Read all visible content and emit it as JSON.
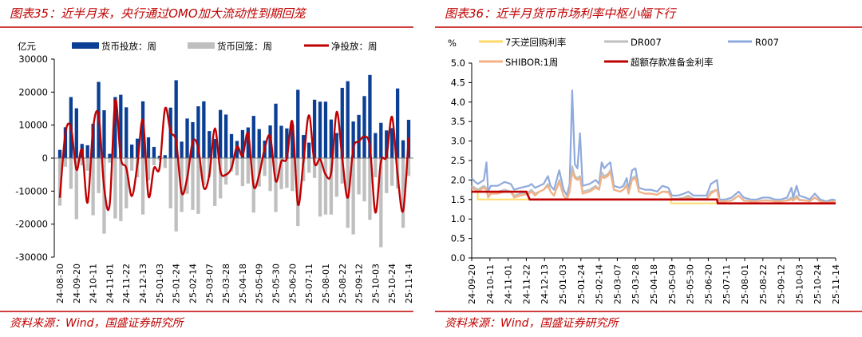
{
  "colors": {
    "accent": "#c00000",
    "injection": "#0b3f94",
    "withdrawal": "#bfbfbf",
    "net": "#c00000",
    "reverse_repo": "#ffd966",
    "dr007": "#bfbfbf",
    "r007": "#8faadc",
    "shibor": "#f4b183",
    "excess_reserve": "#c00000"
  },
  "chart_data": [
    {
      "type": "bar",
      "title": "图表35：近半月来，央行通过OMO加大流动性到期回笼",
      "source": "资料来源：Wind，国盛证券研究所",
      "ylabel": "亿元",
      "ylim": [
        -30000,
        30000
      ],
      "yticks": [
        "30000",
        "20000",
        "10000",
        "0",
        "-10000",
        "-20000",
        "-30000"
      ],
      "ytick_values": [
        30000,
        20000,
        10000,
        0,
        -10000,
        -20000,
        -30000
      ],
      "xtick_labels": [
        "24-08-30",
        "24-09-20",
        "24-10-11",
        "24-11-01",
        "24-11-22",
        "24-12-13",
        "25-01-03",
        "25-01-24",
        "25-02-14",
        "25-03-07",
        "25-03-28",
        "25-04-18",
        "25-05-09",
        "25-05-30",
        "25-06-20",
        "25-07-11",
        "25-08-01",
        "25-08-22",
        "25-09-12",
        "25-10-03",
        "25-10-24",
        "25-11-14"
      ],
      "grid": false,
      "legend_placement": "top",
      "series": [
        {
          "name": "货币投放：周",
          "kind": "bar",
          "values": [
            2500,
            9350,
            18500,
            15100,
            4300,
            3900,
            10400,
            23100,
            14500,
            1300,
            18500,
            19200,
            15400,
            4100,
            5900,
            17200,
            6300,
            3400,
            700,
            900,
            15300,
            23600,
            5000,
            12000,
            10900,
            15700,
            17200,
            8200,
            5800,
            14600,
            13200,
            7300,
            5200,
            8500,
            9300,
            12800,
            8800,
            5300,
            9900,
            16500,
            9800,
            9000,
            10100,
            20700,
            7000,
            4700,
            17700,
            17100,
            17100,
            11700,
            7600,
            21300,
            23300,
            11100,
            13100,
            18800,
            25200,
            7600,
            10700,
            8400,
            9100,
            21100,
            5400,
            11600
          ]
        },
        {
          "name": "货币回笼：周",
          "kind": "bar",
          "values": [
            -14400,
            -2600,
            -9300,
            -18500,
            -2200,
            -3800,
            -17300,
            -10600,
            -22900,
            -1400,
            -18300,
            -19100,
            -15200,
            -3800,
            -5800,
            -17100,
            -6700,
            -2200,
            -600,
            -3000,
            -15200,
            -22200,
            -16300,
            -10800,
            -15700,
            -16900,
            -8200,
            -5800,
            -14500,
            -12200,
            -8000,
            -4000,
            -5200,
            -8500,
            -7700,
            -16500,
            -8600,
            -5400,
            -10000,
            -16300,
            -9400,
            -9000,
            -10000,
            -20600,
            -7000,
            -4400,
            -6000,
            -17700,
            -17100,
            -17100,
            -11700,
            -7700,
            -21100,
            -23100,
            -11000,
            -13100,
            -18700,
            -5800,
            -27000,
            -10600,
            -8400,
            -9200,
            -21100,
            -5400
          ]
        },
        {
          "name": "净投放：周",
          "kind": "line",
          "values": [
            -12000,
            7500,
            9300,
            -3500,
            2500,
            -13500,
            9000,
            13000,
            -9000,
            -14000,
            17500,
            0,
            -3000,
            -11500,
            -2000,
            11500,
            -11500,
            -3000,
            -3000,
            15000,
            8000,
            5000,
            -10500,
            -6000,
            5000,
            3000,
            -9000,
            -5000,
            9000,
            -4000,
            -5000,
            -3000,
            3500,
            700,
            7500,
            -8500,
            -5000,
            3000,
            6500,
            -7000,
            -1000,
            0,
            11000,
            -14000,
            -1000,
            13000,
            -1500,
            -300,
            -5000,
            -4500,
            14000,
            0,
            -12000,
            3000,
            5000,
            6500,
            3500,
            -16500,
            -1000,
            500,
            12500,
            -5000,
            -16000,
            6200
          ]
        }
      ]
    },
    {
      "type": "line",
      "title": "图表36：近半月货币市场利率中枢小幅下行",
      "source": "资料来源：Wind，国盛证券研究所",
      "ylabel": "%",
      "ylim": [
        0,
        5
      ],
      "yticks": [
        "5.0",
        "4.5",
        "4.0",
        "3.5",
        "3.0",
        "2.5",
        "2.0",
        "1.5",
        "1.0",
        "0.5",
        "0.0"
      ],
      "ytick_values": [
        5,
        4.5,
        4,
        3.5,
        3,
        2.5,
        2,
        1.5,
        1,
        0.5,
        0
      ],
      "xlim": [
        "24-09-20",
        "25-11-14"
      ],
      "xtick_labels": [
        "24-09-20",
        "24-10-11",
        "24-11-01",
        "24-11-22",
        "24-12-13",
        "25-01-03",
        "25-01-24",
        "25-02-14",
        "25-03-07",
        "25-03-28",
        "25-04-18",
        "25-05-09",
        "25-05-30",
        "25-06-20",
        "25-07-11",
        "25-08-01",
        "25-08-22",
        "25-09-12",
        "25-10-03",
        "25-10-24",
        "25-11-14"
      ],
      "grid": false,
      "legend_placement": "top",
      "dates": [
        "24-09-20",
        "24-09-24",
        "24-09-27",
        "24-10-04",
        "24-10-07",
        "24-10-09",
        "24-10-12",
        "24-10-20",
        "24-10-28",
        "24-11-04",
        "24-11-08",
        "24-11-15",
        "24-11-25",
        "24-11-28",
        "24-12-02",
        "24-12-07",
        "24-12-12",
        "24-12-17",
        "24-12-20",
        "24-12-24",
        "24-12-30",
        "25-01-04",
        "25-01-08",
        "25-01-11",
        "25-01-14",
        "25-01-17",
        "25-01-20",
        "25-01-23",
        "25-01-26",
        "25-02-03",
        "25-02-10",
        "25-02-14",
        "25-02-17",
        "25-02-20",
        "25-02-24",
        "25-02-27",
        "25-03-03",
        "25-03-10",
        "25-03-14",
        "25-03-18",
        "25-03-20",
        "25-03-24",
        "25-03-28",
        "25-04-01",
        "25-04-08",
        "25-04-15",
        "25-04-22",
        "25-04-28",
        "25-05-05",
        "25-05-09",
        "25-05-16",
        "25-05-23",
        "25-05-28",
        "25-06-03",
        "25-06-10",
        "25-06-18",
        "25-06-23",
        "25-06-30",
        "25-07-03",
        "25-07-10",
        "25-07-17",
        "25-07-25",
        "25-07-31",
        "25-08-08",
        "25-08-15",
        "25-08-22",
        "25-08-29",
        "25-09-05",
        "25-09-12",
        "25-09-19",
        "25-09-24",
        "25-09-26",
        "25-09-30",
        "25-10-03",
        "25-10-10",
        "25-10-15",
        "25-10-21",
        "25-10-27",
        "25-11-03",
        "25-11-10",
        "25-11-14"
      ],
      "series": [
        {
          "name": "DR007",
          "color_key": "dr007",
          "values": [
            1.85,
            1.8,
            1.75,
            1.85,
            1.8,
            1.55,
            1.7,
            1.7,
            1.75,
            1.7,
            1.6,
            1.65,
            1.7,
            1.75,
            1.65,
            1.7,
            1.75,
            1.9,
            1.7,
            1.6,
            2.0,
            1.6,
            1.5,
            1.75,
            2.35,
            2.1,
            2.05,
            2.1,
            1.7,
            1.75,
            1.85,
            1.75,
            2.2,
            2.1,
            2.15,
            2.25,
            1.75,
            1.7,
            1.75,
            1.9,
            1.65,
            2.05,
            2.1,
            1.7,
            1.65,
            1.65,
            1.62,
            1.7,
            1.7,
            1.52,
            1.52,
            1.55,
            1.6,
            1.52,
            1.52,
            1.52,
            1.7,
            1.75,
            1.45,
            1.45,
            1.48,
            1.6,
            1.48,
            1.45,
            1.45,
            1.48,
            1.48,
            1.45,
            1.45,
            1.48,
            1.55,
            1.48,
            1.6,
            1.5,
            1.48,
            1.45,
            1.55,
            1.45,
            1.42,
            1.45,
            1.45
          ]
        },
        {
          "name": "R007",
          "color_key": "r007",
          "values": [
            2.05,
            1.95,
            1.9,
            2.0,
            2.45,
            1.7,
            1.85,
            1.85,
            1.95,
            1.9,
            1.75,
            1.8,
            1.85,
            1.9,
            1.8,
            1.85,
            1.9,
            2.1,
            1.85,
            1.75,
            2.25,
            1.75,
            1.6,
            1.9,
            4.3,
            2.4,
            2.3,
            3.2,
            1.85,
            1.9,
            2.0,
            1.9,
            2.45,
            2.3,
            2.4,
            2.45,
            1.85,
            1.8,
            1.85,
            2.05,
            1.75,
            2.25,
            2.3,
            1.8,
            1.75,
            1.75,
            1.7,
            1.85,
            1.8,
            1.6,
            1.6,
            1.65,
            1.7,
            1.6,
            1.6,
            1.6,
            1.9,
            2.0,
            1.5,
            1.5,
            1.55,
            1.7,
            1.55,
            1.5,
            1.5,
            1.55,
            1.55,
            1.5,
            1.5,
            1.55,
            1.8,
            1.55,
            1.85,
            1.6,
            1.55,
            1.5,
            1.65,
            1.5,
            1.45,
            1.5,
            1.48
          ]
        },
        {
          "name": "SHIBOR:1周",
          "color_key": "shibor",
          "values": [
            1.8,
            1.75,
            1.7,
            1.8,
            1.75,
            1.55,
            1.65,
            1.65,
            1.7,
            1.7,
            1.55,
            1.6,
            1.65,
            1.7,
            1.6,
            1.7,
            1.75,
            1.85,
            1.7,
            1.6,
            1.95,
            1.6,
            1.5,
            1.7,
            2.2,
            2.05,
            2.0,
            2.05,
            1.65,
            1.7,
            1.8,
            1.75,
            2.1,
            2.05,
            2.1,
            2.2,
            1.75,
            1.7,
            1.75,
            1.85,
            1.65,
            2.0,
            2.05,
            1.7,
            1.65,
            1.65,
            1.62,
            1.7,
            1.68,
            1.52,
            1.5,
            1.52,
            1.55,
            1.5,
            1.5,
            1.5,
            1.65,
            1.75,
            1.45,
            1.45,
            1.47,
            1.6,
            1.47,
            1.45,
            1.45,
            1.47,
            1.47,
            1.45,
            1.45,
            1.47,
            1.5,
            1.47,
            1.55,
            1.48,
            1.47,
            1.45,
            1.55,
            1.45,
            1.42,
            1.45,
            1.45
          ]
        }
      ],
      "step_series": [
        {
          "name": "7天逆回购利率",
          "color_key": "reverse_repo",
          "points": [
            {
              "date": "24-09-20",
              "value": 1.7
            },
            {
              "date": "24-09-27",
              "value": 1.5
            },
            {
              "date": "25-05-08",
              "value": 1.4
            },
            {
              "date": "25-11-14",
              "value": 1.4
            }
          ]
        },
        {
          "name": "超额存款准备金利率",
          "color_key": "excess_reserve",
          "points": [
            {
              "date": "24-09-20",
              "value": 1.7
            },
            {
              "date": "24-11-22",
              "value": 1.7
            },
            {
              "date": "24-11-26",
              "value": 1.5
            },
            {
              "date": "25-06-30",
              "value": 1.5
            },
            {
              "date": "25-07-01",
              "value": 1.4
            },
            {
              "date": "25-11-14",
              "value": 1.4
            }
          ]
        }
      ],
      "legend_order": [
        "7天逆回购利率",
        "DR007",
        "R007",
        "SHIBOR:1周",
        "超额存款准备金利率"
      ]
    }
  ]
}
